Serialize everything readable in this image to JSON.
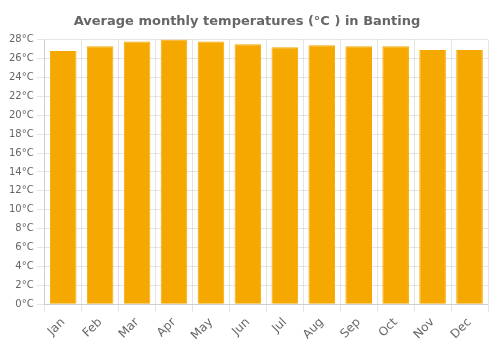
{
  "chart_data": {
    "type": "bar",
    "title": "Average monthly temperatures (°C ) in Banting",
    "categories": [
      "Jan",
      "Feb",
      "Mar",
      "Apr",
      "May",
      "Jun",
      "Jul",
      "Aug",
      "Sep",
      "Oct",
      "Nov",
      "Dec"
    ],
    "values": [
      26.8,
      27.3,
      27.8,
      28.0,
      27.8,
      27.5,
      27.2,
      27.4,
      27.3,
      27.3,
      26.9,
      26.9
    ],
    "color": "#F5A800",
    "ylim": [
      0,
      28
    ],
    "yticks": [
      {
        "value": 0,
        "label": "0°C"
      },
      {
        "value": 2,
        "label": "2°C"
      },
      {
        "value": 4,
        "label": "4°C"
      },
      {
        "value": 6,
        "label": "6°C"
      },
      {
        "value": 8,
        "label": "8°C"
      },
      {
        "value": 10,
        "label": "10°C"
      },
      {
        "value": 12,
        "label": "12°C"
      },
      {
        "value": 14,
        "label": "14°C"
      },
      {
        "value": 16,
        "label": "16°C"
      },
      {
        "value": 18,
        "label": "18°C"
      },
      {
        "value": 20,
        "label": "20°C"
      },
      {
        "value": 22,
        "label": "22°C"
      },
      {
        "value": 24,
        "label": "24°C"
      },
      {
        "value": 26,
        "label": "26°C"
      },
      {
        "value": 28,
        "label": "28°C"
      }
    ],
    "grid": true
  }
}
